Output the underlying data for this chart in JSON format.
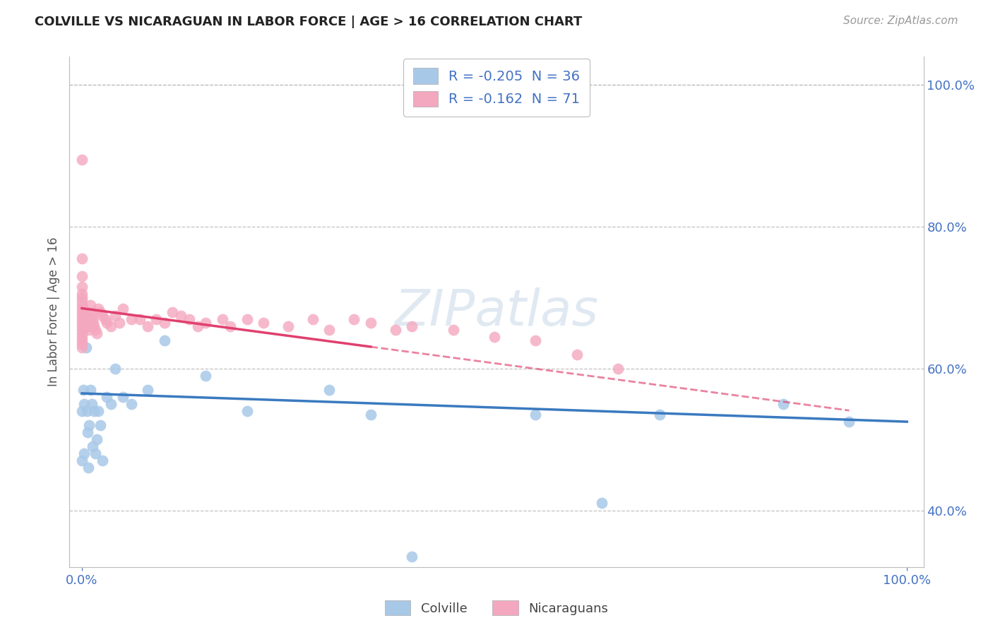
{
  "title": "COLVILLE VS NICARAGUAN IN LABOR FORCE | AGE > 16 CORRELATION CHART",
  "source": "Source: ZipAtlas.com",
  "ylabel": "In Labor Force | Age > 16",
  "background_color": "#ffffff",
  "grid_color": "#cccccc",
  "colville_color": "#a8c8e8",
  "nicaraguan_color": "#f4a8c0",
  "colville_line_color": "#3a7abf",
  "nicaraguan_line_color": "#e0406e",
  "legend_label1": "R = -0.205  N = 36",
  "legend_label2": "R = -0.162  N = 71",
  "watermark": "ZIPatlas",
  "bottom_label1": "Colville",
  "bottom_label2": "Nicaraguans",
  "colville_x": [
    0.0,
    0.0,
    0.002,
    0.003,
    0.003,
    0.005,
    0.006,
    0.007,
    0.008,
    0.009,
    0.01,
    0.012,
    0.013,
    0.015,
    0.016,
    0.018,
    0.02,
    0.022,
    0.025,
    0.03,
    0.035,
    0.04,
    0.05,
    0.06,
    0.08,
    0.1,
    0.15,
    0.2,
    0.3,
    0.35,
    0.4,
    0.55,
    0.63,
    0.7,
    0.85,
    0.93
  ],
  "colville_y": [
    0.54,
    0.47,
    0.57,
    0.55,
    0.48,
    0.63,
    0.54,
    0.51,
    0.46,
    0.52,
    0.57,
    0.55,
    0.49,
    0.54,
    0.48,
    0.5,
    0.54,
    0.52,
    0.47,
    0.56,
    0.55,
    0.6,
    0.56,
    0.55,
    0.57,
    0.64,
    0.59,
    0.54,
    0.57,
    0.535,
    0.335,
    0.535,
    0.41,
    0.535,
    0.55,
    0.525
  ],
  "nicaraguan_x": [
    0.0,
    0.0,
    0.0,
    0.0,
    0.0,
    0.0,
    0.0,
    0.0,
    0.0,
    0.0,
    0.0,
    0.0,
    0.0,
    0.0,
    0.0,
    0.0,
    0.0,
    0.0,
    0.0,
    0.0,
    0.002,
    0.003,
    0.004,
    0.005,
    0.006,
    0.007,
    0.008,
    0.009,
    0.01,
    0.011,
    0.012,
    0.013,
    0.014,
    0.015,
    0.016,
    0.018,
    0.02,
    0.022,
    0.025,
    0.028,
    0.03,
    0.035,
    0.04,
    0.045,
    0.05,
    0.06,
    0.07,
    0.08,
    0.09,
    0.1,
    0.11,
    0.12,
    0.13,
    0.14,
    0.15,
    0.17,
    0.18,
    0.2,
    0.22,
    0.25,
    0.28,
    0.3,
    0.33,
    0.35,
    0.38,
    0.4,
    0.45,
    0.5,
    0.55,
    0.6,
    0.65
  ],
  "nicaraguan_y": [
    0.895,
    0.755,
    0.73,
    0.715,
    0.705,
    0.7,
    0.695,
    0.69,
    0.685,
    0.68,
    0.675,
    0.67,
    0.665,
    0.66,
    0.655,
    0.65,
    0.645,
    0.64,
    0.635,
    0.63,
    0.685,
    0.68,
    0.675,
    0.67,
    0.665,
    0.66,
    0.66,
    0.655,
    0.69,
    0.68,
    0.675,
    0.67,
    0.665,
    0.66,
    0.655,
    0.65,
    0.685,
    0.68,
    0.675,
    0.67,
    0.665,
    0.66,
    0.675,
    0.665,
    0.685,
    0.67,
    0.67,
    0.66,
    0.67,
    0.665,
    0.68,
    0.675,
    0.67,
    0.66,
    0.665,
    0.67,
    0.66,
    0.67,
    0.665,
    0.66,
    0.67,
    0.655,
    0.67,
    0.665,
    0.655,
    0.66,
    0.655,
    0.645,
    0.64,
    0.62,
    0.6
  ],
  "colville_trend_x": [
    0.0,
    1.0
  ],
  "colville_trend_y": [
    0.565,
    0.525
  ],
  "nic_trend_x0": 0.0,
  "nic_trend_x_solid_end": 0.35,
  "nic_trend_x_dash_end": 0.93,
  "nic_trend_y0": 0.685,
  "nic_trend_slope": -0.155,
  "xlim": [
    -0.015,
    1.02
  ],
  "ylim": [
    0.32,
    1.04
  ],
  "yticks": [
    0.4,
    0.6,
    0.8,
    1.0
  ],
  "yticklabels": [
    "40.0%",
    "60.0%",
    "80.0%",
    "100.0%"
  ],
  "xticks": [
    0.0,
    1.0
  ],
  "xticklabels": [
    "0.0%",
    "100.0%"
  ]
}
